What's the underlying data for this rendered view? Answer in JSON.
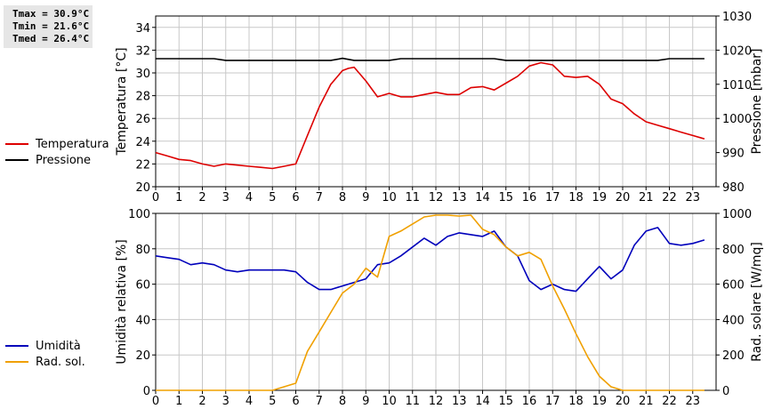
{
  "stats": {
    "tmax": "Tmax = 30.9°C",
    "tmin": "Tmin = 21.6°C",
    "tmed": "Tmed = 26.4°C"
  },
  "legend_top": [
    {
      "label": "Temperatura",
      "color": "#dd0000"
    },
    {
      "label": "Pressione",
      "color": "#000000"
    }
  ],
  "legend_bottom": [
    {
      "label": "Umidità",
      "color": "#0000bb"
    },
    {
      "label": "Rad. sol.",
      "color": "#f0a000"
    }
  ],
  "chart_data": [
    {
      "type": "line",
      "ylabel": "Temperatura [°C]",
      "y2label": "Pressione [mbar]",
      "xlim": [
        0,
        24
      ],
      "ylim": [
        20,
        35
      ],
      "y2lim": [
        980,
        1030
      ],
      "x_ticks": [
        "0",
        "1",
        "2",
        "3",
        "4",
        "5",
        "6",
        "7",
        "8",
        "9",
        "10",
        "11",
        "12",
        "13",
        "14",
        "15",
        "16",
        "17",
        "18",
        "19",
        "20",
        "21",
        "22",
        "23"
      ],
      "y_ticks": [
        "20",
        "22",
        "24",
        "26",
        "28",
        "30",
        "32",
        "34"
      ],
      "y2_ticks": [
        "980",
        "990",
        "1000",
        "1010",
        "1020",
        "1030"
      ],
      "grid": true,
      "series": [
        {
          "name": "Temperatura",
          "axis": "left",
          "color": "#dd0000",
          "x": [
            0,
            0.5,
            1,
            1.5,
            2,
            2.5,
            3,
            3.5,
            4,
            4.5,
            5,
            5.5,
            6,
            6.5,
            7,
            7.5,
            8,
            8.25,
            8.5,
            9,
            9.5,
            10,
            10.5,
            11,
            11.5,
            12,
            12.5,
            13,
            13.5,
            14,
            14.5,
            15,
            15.5,
            16,
            16.5,
            17,
            17.5,
            18,
            18.5,
            19,
            19.5,
            20,
            20.5,
            21,
            21.5,
            22,
            22.5,
            23,
            23.5
          ],
          "y": [
            23.0,
            22.7,
            22.4,
            22.3,
            22.0,
            21.8,
            22.0,
            21.9,
            21.8,
            21.7,
            21.6,
            21.8,
            22.0,
            24.5,
            27.0,
            29.0,
            30.2,
            30.4,
            30.5,
            29.3,
            27.9,
            28.2,
            27.9,
            27.9,
            28.1,
            28.3,
            28.1,
            28.1,
            28.7,
            28.8,
            28.5,
            29.1,
            29.7,
            30.6,
            30.9,
            30.7,
            29.7,
            29.6,
            29.7,
            29.0,
            27.7,
            27.3,
            26.4,
            25.7,
            25.4,
            25.1,
            24.8,
            24.5,
            24.2
          ]
        },
        {
          "name": "Pressione",
          "axis": "right",
          "color": "#000000",
          "x": [
            0,
            2.5,
            3,
            7.5,
            8,
            8.5,
            10,
            10.5,
            14.5,
            15,
            21.5,
            22,
            23.5
          ],
          "y": [
            1017.5,
            1017.5,
            1017,
            1017,
            1017.6,
            1017,
            1017,
            1017.5,
            1017.5,
            1017,
            1017,
            1017.5,
            1017.5
          ]
        }
      ]
    },
    {
      "type": "line",
      "ylabel": "Umidità relativa [%]",
      "y2label": "Rad. solare [W/mq]",
      "xlim": [
        0,
        24
      ],
      "ylim": [
        0,
        100
      ],
      "y2lim": [
        0,
        1000
      ],
      "x_ticks": [
        "0",
        "1",
        "2",
        "3",
        "4",
        "5",
        "6",
        "7",
        "8",
        "9",
        "10",
        "11",
        "12",
        "13",
        "14",
        "15",
        "16",
        "17",
        "18",
        "19",
        "20",
        "21",
        "22",
        "23"
      ],
      "y_ticks": [
        "0",
        "20",
        "40",
        "60",
        "80",
        "100"
      ],
      "y2_ticks": [
        "0",
        "200",
        "400",
        "600",
        "800",
        "1000"
      ],
      "grid": true,
      "series": [
        {
          "name": "Umidità",
          "axis": "left",
          "color": "#0000bb",
          "x": [
            0,
            0.5,
            1,
            1.5,
            2,
            2.5,
            3,
            3.5,
            4,
            4.5,
            5,
            5.5,
            6,
            6.5,
            7,
            7.5,
            8,
            8.5,
            9,
            9.5,
            10,
            10.5,
            11,
            11.5,
            12,
            12.5,
            13,
            13.5,
            14,
            14.5,
            15,
            15.5,
            16,
            16.5,
            17,
            17.5,
            18,
            18.5,
            19,
            19.5,
            20,
            20.5,
            21,
            21.5,
            22,
            22.5,
            23,
            23.5
          ],
          "y": [
            76,
            75,
            74,
            71,
            72,
            71,
            68,
            67,
            68,
            68,
            68,
            68,
            67,
            61,
            57,
            57,
            59,
            61,
            63,
            71,
            72,
            76,
            81,
            86,
            82,
            87,
            89,
            88,
            87,
            90,
            81,
            76,
            62,
            57,
            60,
            57,
            56,
            63,
            70,
            63,
            68,
            82,
            90,
            92,
            83,
            82,
            83,
            85
          ]
        },
        {
          "name": "Rad. sol.",
          "axis": "right",
          "color": "#f0a000",
          "x": [
            0,
            1,
            2,
            3,
            4,
            5,
            5.5,
            6,
            6.5,
            7,
            7.5,
            8,
            8.5,
            9,
            9.5,
            10,
            10.5,
            11,
            11.5,
            12,
            12.5,
            13,
            13.5,
            14,
            14.5,
            15,
            15.5,
            16,
            16.5,
            17,
            17.5,
            18,
            18.5,
            19,
            19.5,
            20,
            20.5,
            21,
            22,
            23,
            23.5
          ],
          "y": [
            0,
            0,
            0,
            0,
            0,
            0,
            20,
            40,
            220,
            330,
            440,
            550,
            600,
            690,
            640,
            870,
            900,
            940,
            980,
            990,
            990,
            985,
            990,
            910,
            880,
            810,
            760,
            780,
            740,
            590,
            460,
            320,
            190,
            80,
            20,
            0,
            0,
            0,
            0,
            0,
            0
          ]
        }
      ]
    }
  ]
}
